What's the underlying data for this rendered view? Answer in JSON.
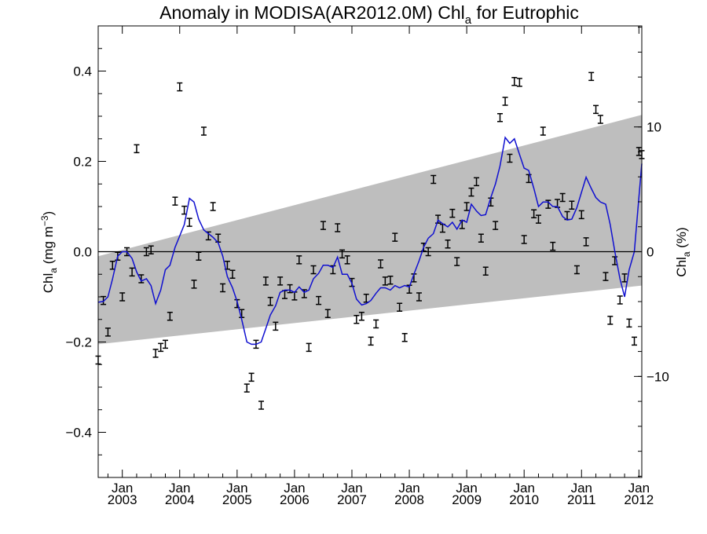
{
  "chart_data": {
    "type": "line",
    "title": {
      "main": "Anomaly in MODISA(AR2012.0M) Chl",
      "sub": "a",
      "tail": " for Eutrophic"
    },
    "ylabel_left": {
      "base": "Chl",
      "sub": "a",
      "mid": " (mg m",
      "sup": "−3",
      "end": ")"
    },
    "ylabel_right": {
      "base": "Chl",
      "sub": "a",
      "end": " (%)"
    },
    "xlim": [
      2002.58,
      2012.05
    ],
    "ylim": [
      -0.5,
      0.5
    ],
    "ylim_right": [
      -18.1,
      18.1
    ],
    "x_ticks": [
      {
        "x": 2003.0,
        "top": "Jan",
        "bottom": "2003"
      },
      {
        "x": 2004.0,
        "top": "Jan",
        "bottom": "2004"
      },
      {
        "x": 2005.0,
        "top": "Jan",
        "bottom": "2005"
      },
      {
        "x": 2006.0,
        "top": "Jan",
        "bottom": "2006"
      },
      {
        "x": 2007.0,
        "top": "Jan",
        "bottom": "2007"
      },
      {
        "x": 2008.0,
        "top": "Jan",
        "bottom": "2008"
      },
      {
        "x": 2009.0,
        "top": "Jan",
        "bottom": "2009"
      },
      {
        "x": 2010.0,
        "top": "Jan",
        "bottom": "2010"
      },
      {
        "x": 2011.0,
        "top": "Jan",
        "bottom": "2011"
      },
      {
        "x": 2012.0,
        "top": "Jan",
        "bottom": "2012"
      }
    ],
    "y_ticks_left": [
      {
        "v": -0.4,
        "label": "−0.4"
      },
      {
        "v": -0.2,
        "label": "−0.2"
      },
      {
        "v": 0.0,
        "label": "0.0"
      },
      {
        "v": 0.2,
        "label": "0.2"
      },
      {
        "v": 0.4,
        "label": "0.4"
      }
    ],
    "y_ticks_right": [
      {
        "v": -10,
        "label": "−10"
      },
      {
        "v": 0,
        "label": "0"
      },
      {
        "v": 10,
        "label": "10"
      }
    ],
    "band": {
      "x": [
        2002.58,
        2012.05
      ],
      "lower": [
        -0.205,
        -0.075
      ],
      "upper": [
        -0.01,
        0.303
      ]
    },
    "zero_line": 0,
    "points": {
      "x": [
        2002.58,
        2002.67,
        2002.75,
        2002.83,
        2002.92,
        2003.0,
        2003.08,
        2003.17,
        2003.25,
        2003.33,
        2003.42,
        2003.5,
        2003.58,
        2003.67,
        2003.75,
        2003.83,
        2003.92,
        2004.0,
        2004.08,
        2004.17,
        2004.25,
        2004.33,
        2004.42,
        2004.5,
        2004.58,
        2004.67,
        2004.75,
        2004.83,
        2004.92,
        2005.0,
        2005.08,
        2005.17,
        2005.25,
        2005.33,
        2005.42,
        2005.5,
        2005.58,
        2005.67,
        2005.75,
        2005.83,
        2005.92,
        2006.0,
        2006.08,
        2006.17,
        2006.25,
        2006.33,
        2006.42,
        2006.5,
        2006.58,
        2006.67,
        2006.75,
        2006.83,
        2006.92,
        2007.0,
        2007.08,
        2007.17,
        2007.25,
        2007.33,
        2007.42,
        2007.5,
        2007.58,
        2007.67,
        2007.75,
        2007.83,
        2007.92,
        2008.0,
        2008.08,
        2008.17,
        2008.25,
        2008.33,
        2008.42,
        2008.5,
        2008.58,
        2008.67,
        2008.75,
        2008.83,
        2008.92,
        2009.0,
        2009.08,
        2009.17,
        2009.25,
        2009.33,
        2009.42,
        2009.5,
        2009.58,
        2009.67,
        2009.75,
        2009.83,
        2009.92,
        2010.0,
        2010.08,
        2010.17,
        2010.25,
        2010.33,
        2010.42,
        2010.5,
        2010.58,
        2010.67,
        2010.75,
        2010.83,
        2010.92,
        2011.0,
        2011.08,
        2011.17,
        2011.25,
        2011.33,
        2011.42,
        2011.5,
        2011.58,
        2011.67,
        2011.75,
        2011.83,
        2011.92,
        2012.0,
        2012.05
      ],
      "y": [
        -0.24,
        -0.108,
        -0.178,
        -0.03,
        -0.01,
        -0.1,
        0.0,
        -0.045,
        0.228,
        -0.06,
        0.0,
        0.004,
        -0.225,
        -0.212,
        -0.205,
        -0.143,
        0.112,
        0.365,
        0.092,
        0.065,
        -0.072,
        -0.01,
        0.267,
        0.035,
        0.1,
        0.03,
        -0.08,
        -0.03,
        -0.05,
        -0.115,
        -0.137,
        -0.302,
        -0.278,
        -0.205,
        -0.34,
        -0.065,
        -0.11,
        -0.165,
        -0.065,
        -0.095,
        -0.082,
        -0.098,
        -0.018,
        -0.093,
        -0.212,
        -0.04,
        -0.108,
        0.058,
        -0.137,
        -0.04,
        0.053,
        -0.005,
        -0.018,
        -0.068,
        -0.15,
        -0.143,
        -0.103,
        -0.198,
        -0.16,
        -0.027,
        -0.065,
        -0.063,
        0.032,
        -0.123,
        -0.19,
        -0.083,
        -0.058,
        -0.1,
        0.01,
        0.0,
        0.16,
        0.072,
        0.052,
        0.017,
        0.085,
        -0.022,
        0.06,
        0.1,
        0.132,
        0.155,
        0.03,
        -0.043,
        0.11,
        0.058,
        0.297,
        0.333,
        0.207,
        0.377,
        0.375,
        0.027,
        0.162,
        0.084,
        0.072,
        0.267,
        0.105,
        0.012,
        0.107,
        0.12,
        0.08,
        0.103,
        -0.04,
        0.082,
        0.022,
        0.388,
        0.315,
        0.293,
        -0.055,
        -0.152,
        -0.02,
        -0.107,
        -0.058,
        -0.158,
        -0.198,
        0.222,
        0.215
      ],
      "err": 0.008
    },
    "series": [
      {
        "color": "#1010d0",
        "x": [
          2002.58,
          2002.67,
          2002.75,
          2002.83,
          2002.92,
          2003.0,
          2003.08,
          2003.17,
          2003.25,
          2003.33,
          2003.42,
          2003.5,
          2003.58,
          2003.67,
          2003.75,
          2003.83,
          2003.92,
          2004.0,
          2004.08,
          2004.17,
          2004.25,
          2004.33,
          2004.42,
          2004.5,
          2004.58,
          2004.67,
          2004.75,
          2004.83,
          2004.92,
          2005.0,
          2005.08,
          2005.17,
          2005.25,
          2005.33,
          2005.42,
          2005.5,
          2005.58,
          2005.67,
          2005.75,
          2005.83,
          2005.92,
          2006.0,
          2006.08,
          2006.17,
          2006.25,
          2006.33,
          2006.42,
          2006.5,
          2006.58,
          2006.67,
          2006.75,
          2006.83,
          2006.92,
          2007.0,
          2007.08,
          2007.17,
          2007.25,
          2007.33,
          2007.42,
          2007.5,
          2007.58,
          2007.67,
          2007.75,
          2007.83,
          2007.92,
          2008.0,
          2008.08,
          2008.17,
          2008.25,
          2008.33,
          2008.42,
          2008.5,
          2008.58,
          2008.67,
          2008.75,
          2008.83,
          2008.92,
          2009.0,
          2009.08,
          2009.17,
          2009.25,
          2009.33,
          2009.42,
          2009.5,
          2009.58,
          2009.67,
          2009.75,
          2009.83,
          2009.92,
          2010.0,
          2010.08,
          2010.17,
          2010.25,
          2010.33,
          2010.42,
          2010.5,
          2010.58,
          2010.67,
          2010.75,
          2010.83,
          2010.92,
          2011.0,
          2011.08,
          2011.17,
          2011.25,
          2011.33,
          2011.42,
          2011.5,
          2011.58,
          2011.67,
          2011.75,
          2011.83,
          2011.92,
          2012.0,
          2012.05
        ],
        "y": [
          -0.112,
          -0.11,
          -0.1,
          -0.06,
          -0.01,
          0.0,
          0.0,
          -0.015,
          -0.045,
          -0.065,
          -0.06,
          -0.075,
          -0.115,
          -0.085,
          -0.04,
          -0.03,
          0.01,
          0.035,
          0.06,
          0.118,
          0.11,
          0.072,
          0.048,
          0.04,
          0.032,
          0.02,
          -0.01,
          -0.055,
          -0.08,
          -0.11,
          -0.15,
          -0.2,
          -0.205,
          -0.205,
          -0.2,
          -0.17,
          -0.14,
          -0.12,
          -0.09,
          -0.085,
          -0.085,
          -0.09,
          -0.078,
          -0.09,
          -0.085,
          -0.06,
          -0.048,
          -0.03,
          -0.03,
          -0.035,
          -0.012,
          -0.05,
          -0.05,
          -0.07,
          -0.105,
          -0.118,
          -0.115,
          -0.108,
          -0.092,
          -0.08,
          -0.08,
          -0.085,
          -0.075,
          -0.08,
          -0.075,
          -0.078,
          -0.05,
          -0.02,
          0.01,
          0.03,
          0.04,
          0.07,
          0.062,
          0.055,
          0.065,
          0.05,
          0.07,
          0.065,
          0.105,
          0.09,
          0.08,
          0.082,
          0.12,
          0.15,
          0.19,
          0.253,
          0.24,
          0.25,
          0.215,
          0.185,
          0.18,
          0.14,
          0.1,
          0.11,
          0.11,
          0.1,
          0.1,
          0.078,
          0.07,
          0.072,
          0.098,
          0.132,
          0.165,
          0.14,
          0.12,
          0.11,
          0.105,
          0.06,
          0.0,
          -0.06,
          -0.1,
          -0.04,
          0.0,
          0.12,
          0.195
        ]
      }
    ],
    "grid": false,
    "legend": "none"
  }
}
